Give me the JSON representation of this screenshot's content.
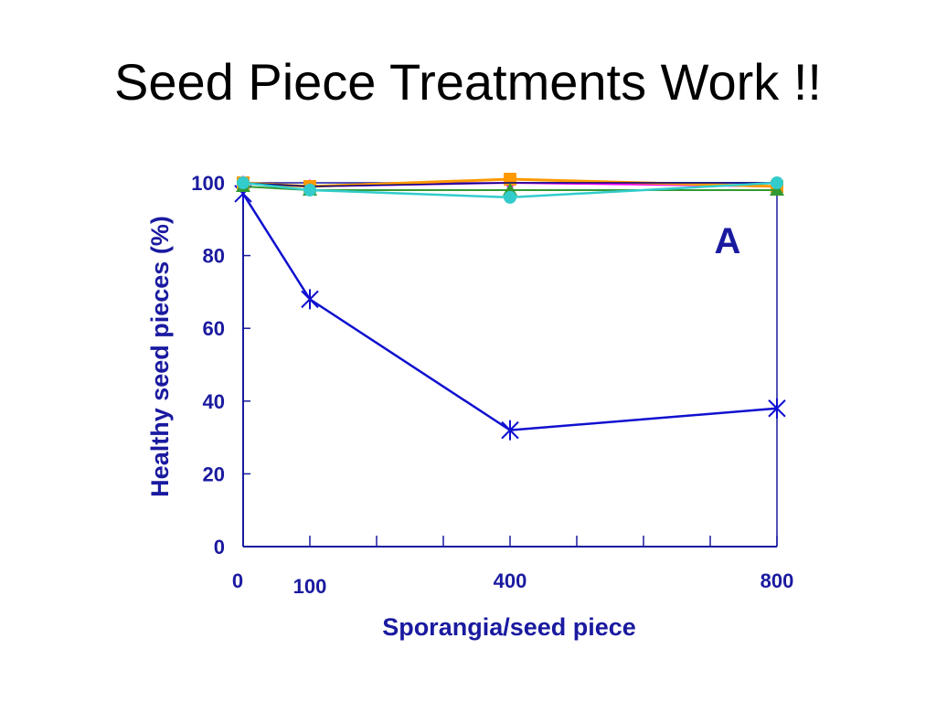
{
  "slide": {
    "title": "Seed Piece Treatments Work !!"
  },
  "colors": {
    "axis": "#1a1aa0",
    "text": "#1a1aa0"
  },
  "chart_data": {
    "type": "line",
    "panel_label": "A",
    "xlabel": "Sporangia/seed piece",
    "ylabel": "Healthy seed pieces (%)",
    "xlim": [
      0,
      800
    ],
    "ylim": [
      0,
      100
    ],
    "x_tick_labels": [
      "0",
      "100",
      "400",
      "800"
    ],
    "x_tick_values": [
      0,
      100,
      400,
      800
    ],
    "x_minor_ticks": [
      100,
      200,
      300,
      400,
      500,
      600,
      700,
      800
    ],
    "y_tick_labels": [
      "0",
      "20",
      "40",
      "60",
      "80",
      "100"
    ],
    "y_tick_values": [
      0,
      20,
      40,
      60,
      80,
      100
    ],
    "grid": false,
    "x": [
      0,
      100,
      400,
      800
    ],
    "series": [
      {
        "values": [
          97,
          68,
          32,
          38
        ],
        "color": "#1010d0",
        "marker": "asterisk",
        "width": 2.5
      },
      {
        "values": [
          100,
          99,
          100,
          99
        ],
        "color": "#ff00ff",
        "marker": "diamond",
        "width": 2
      },
      {
        "values": [
          100,
          99,
          101,
          99
        ],
        "color": "#ff9900",
        "marker": "square",
        "width": 3
      },
      {
        "values": [
          100,
          99,
          100,
          100
        ],
        "color": "#000080",
        "marker": "none",
        "width": 1.5
      },
      {
        "values": [
          99,
          98,
          98,
          98
        ],
        "color": "#339933",
        "marker": "triangle",
        "width": 2
      },
      {
        "values": [
          100,
          98,
          96,
          100
        ],
        "color": "#33cccc",
        "marker": "circle",
        "width": 2.5
      }
    ]
  }
}
